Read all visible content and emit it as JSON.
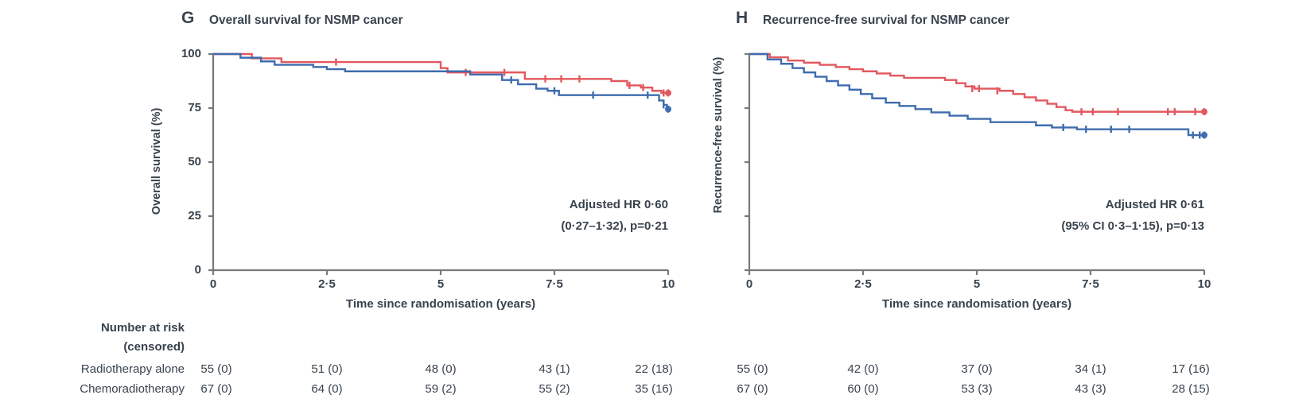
{
  "figure": {
    "panels": [
      {
        "letter": "G",
        "title": "Overall survival for NSMP cancer",
        "ylabel": "Overall survival (%)",
        "xlabel": "Time since randomisation (years)",
        "annotation_line1": "Adjusted HR 0·60",
        "annotation_line2": "(0·27–1·32), p=0·21",
        "yticks": [
          "100",
          "75",
          "50",
          "25",
          "0"
        ],
        "xticks": [
          "0",
          "2·5",
          "5",
          "7·5",
          "10"
        ]
      },
      {
        "letter": "H",
        "title": "Recurrence-free survival for NSMP cancer",
        "ylabel": "Recurrence-free survival (%)",
        "xlabel": "Time since randomisation (years)",
        "annotation_line1": "Adjusted HR 0·61",
        "annotation_line2": "(95% CI 0·3–1·15), p=0·13",
        "yticks": [],
        "xticks": [
          "0",
          "2·5",
          "5",
          "7·5",
          "10"
        ]
      }
    ]
  },
  "risk_table": {
    "header_line1": "Number at risk",
    "header_line2": "(censored)",
    "row_labels": [
      "Radiotherapy alone",
      "Chemoradiotherapy"
    ],
    "panels": [
      {
        "rows": [
          [
            "55 (0)",
            "51 (0)",
            "48 (0)",
            "43 (1)",
            "22 (18)"
          ],
          [
            "67 (0)",
            "64 (0)",
            "59 (2)",
            "55 (2)",
            "35 (16)"
          ]
        ]
      },
      {
        "rows": [
          [
            "55 (0)",
            "42 (0)",
            "37 (0)",
            "34 (1)",
            "17 (16)"
          ],
          [
            "67 (0)",
            "60 (0)",
            "53 (3)",
            "43 (3)",
            "28 (15)"
          ]
        ]
      }
    ]
  },
  "colors": {
    "red_curve": "#e2585e",
    "blue_curve": "#3e6cae",
    "text": "#39434d",
    "axis": "#76787a"
  },
  "chart_data": [
    {
      "type": "line",
      "subtype": "kaplan-meier-step",
      "panel": "G",
      "title": "Overall survival for NSMP cancer",
      "xlabel": "Time since randomisation (years)",
      "ylabel": "Overall survival (%)",
      "xlim": [
        0,
        10
      ],
      "ylim": [
        0,
        100
      ],
      "xticks": [
        0,
        2.5,
        5,
        7.5,
        10
      ],
      "yticks": [
        0,
        25,
        50,
        75,
        100
      ],
      "ytick_labels_shown": true,
      "annotation": "Adjusted HR 0·60 (0·27–1·32), p=0·21",
      "series": [
        {
          "name": "red",
          "color": "#e2585e",
          "steps": [
            [
              0,
              100
            ],
            [
              0.85,
              98
            ],
            [
              1.5,
              96.3
            ],
            [
              5.0,
              93.5
            ],
            [
              5.15,
              91.5
            ],
            [
              6.85,
              88.5
            ],
            [
              8.75,
              87.5
            ],
            [
              9.1,
              85.5
            ],
            [
              9.4,
              84.5
            ],
            [
              9.65,
              83
            ],
            [
              9.85,
              82
            ]
          ],
          "censors": [
            [
              2.7,
              96.3
            ],
            [
              5.55,
              91.5
            ],
            [
              6.4,
              91.5
            ],
            [
              7.3,
              88.5
            ],
            [
              7.65,
              88.5
            ],
            [
              8.05,
              88.5
            ],
            [
              9.15,
              85.5
            ],
            [
              9.45,
              84.5
            ],
            [
              9.9,
              82
            ],
            [
              10,
              82
            ]
          ],
          "end_dot": [
            10,
            82
          ]
        },
        {
          "name": "blue",
          "color": "#3e6cae",
          "steps": [
            [
              0,
              100
            ],
            [
              0.6,
              98.3
            ],
            [
              1.05,
              96.6
            ],
            [
              1.35,
              95
            ],
            [
              2.2,
              94
            ],
            [
              2.5,
              93
            ],
            [
              2.9,
              92
            ],
            [
              5.65,
              90.5
            ],
            [
              6.35,
              88
            ],
            [
              6.7,
              86
            ],
            [
              7.1,
              84
            ],
            [
              7.35,
              83
            ],
            [
              7.6,
              81
            ],
            [
              9.8,
              78.5
            ],
            [
              9.9,
              76.5
            ],
            [
              9.97,
              74.5
            ]
          ],
          "censors": [
            [
              6.55,
              88
            ],
            [
              7.5,
              83
            ],
            [
              8.35,
              81
            ],
            [
              9.55,
              81
            ],
            [
              9.9,
              76.5
            ],
            [
              10,
              74.5
            ]
          ],
          "end_dot": [
            10,
            74.5
          ]
        }
      ]
    },
    {
      "type": "line",
      "subtype": "kaplan-meier-step",
      "panel": "H",
      "title": "Recurrence-free survival for NSMP cancer",
      "xlabel": "Time since randomisation (years)",
      "ylabel": "Recurrence-free survival (%)",
      "xlim": [
        0,
        10
      ],
      "ylim": [
        0,
        100
      ],
      "xticks": [
        0,
        2.5,
        5,
        7.5,
        10
      ],
      "yticks": [
        0,
        25,
        50,
        75,
        100
      ],
      "ytick_labels_shown": false,
      "annotation": "Adjusted HR 0·61 (95% CI 0·3–1·15), p=0·13",
      "series": [
        {
          "name": "red",
          "color": "#e2585e",
          "steps": [
            [
              0,
              100
            ],
            [
              0.45,
              98.5
            ],
            [
              0.85,
              97
            ],
            [
              1.2,
              96
            ],
            [
              1.55,
              95
            ],
            [
              1.9,
              94
            ],
            [
              2.2,
              93
            ],
            [
              2.5,
              92
            ],
            [
              2.8,
              91
            ],
            [
              3.1,
              90
            ],
            [
              3.4,
              89
            ],
            [
              4.3,
              88
            ],
            [
              4.55,
              86.5
            ],
            [
              4.75,
              85
            ],
            [
              4.95,
              84
            ],
            [
              5.5,
              83
            ],
            [
              5.8,
              81.5
            ],
            [
              6.05,
              80
            ],
            [
              6.3,
              78.5
            ],
            [
              6.55,
              77
            ],
            [
              6.75,
              75.5
            ],
            [
              6.95,
              74
            ],
            [
              7.1,
              73.3
            ]
          ],
          "censors": [
            [
              4.9,
              84
            ],
            [
              5.05,
              84
            ],
            [
              5.45,
              83
            ],
            [
              7.3,
              73.3
            ],
            [
              7.55,
              73.3
            ],
            [
              8.1,
              73.3
            ],
            [
              9.2,
              73.3
            ],
            [
              9.35,
              73.3
            ],
            [
              9.8,
              73.3
            ],
            [
              10,
              73.3
            ]
          ],
          "end_dot": [
            10,
            73.3
          ]
        },
        {
          "name": "blue",
          "color": "#3e6cae",
          "steps": [
            [
              0,
              100
            ],
            [
              0.4,
              97.5
            ],
            [
              0.7,
              95.5
            ],
            [
              0.95,
              93.5
            ],
            [
              1.2,
              91.5
            ],
            [
              1.45,
              89.5
            ],
            [
              1.7,
              87.5
            ],
            [
              1.95,
              85.5
            ],
            [
              2.2,
              83.5
            ],
            [
              2.45,
              81.5
            ],
            [
              2.7,
              79.5
            ],
            [
              3.0,
              77.5
            ],
            [
              3.3,
              76
            ],
            [
              3.65,
              74.5
            ],
            [
              4.0,
              73
            ],
            [
              4.4,
              71.5
            ],
            [
              4.8,
              70
            ],
            [
              5.3,
              68.5
            ],
            [
              6.3,
              67
            ],
            [
              6.65,
              66
            ],
            [
              7.2,
              65.2
            ],
            [
              9.65,
              62.5
            ]
          ],
          "censors": [
            [
              6.9,
              66
            ],
            [
              7.4,
              65.2
            ],
            [
              7.95,
              65.2
            ],
            [
              8.35,
              65.2
            ],
            [
              9.75,
              62.5
            ],
            [
              9.9,
              62.5
            ],
            [
              10,
              62.5
            ]
          ],
          "end_dot": [
            10,
            62.5
          ]
        }
      ]
    }
  ]
}
